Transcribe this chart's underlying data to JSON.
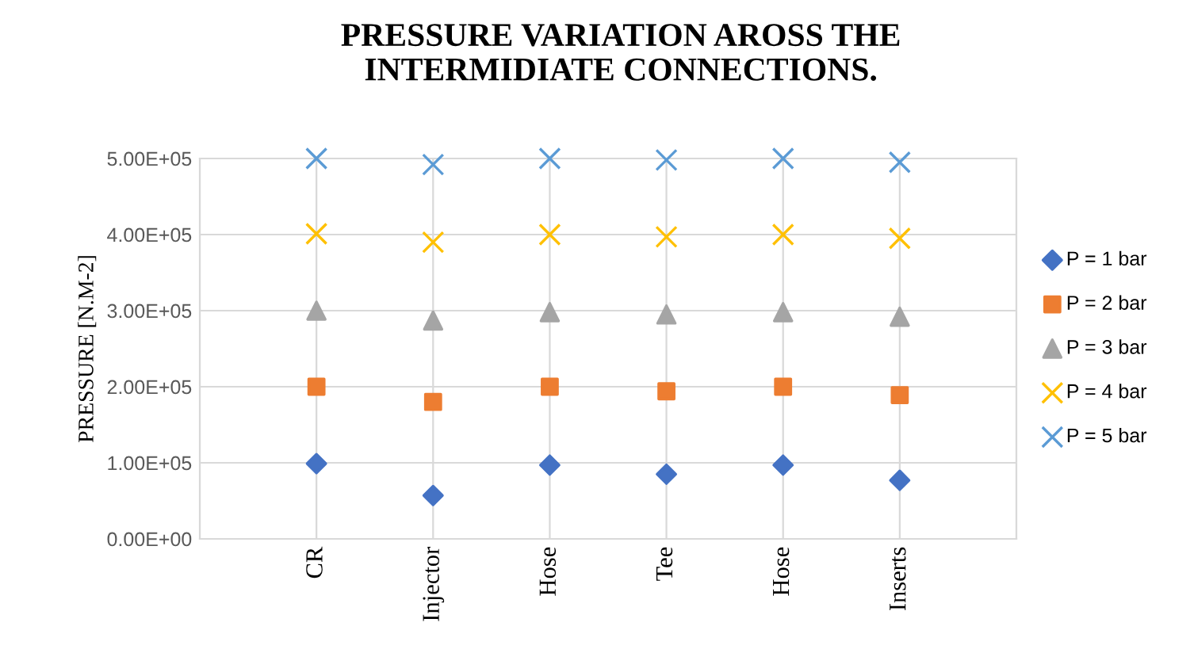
{
  "chart_data": {
    "type": "scatter",
    "title": "PRESSURE VARIATION AROSS THE\nINTERMIDIATE CONNECTIONS.",
    "ylabel": "PRESSURE [N.M-2]",
    "categories": [
      "CR",
      "Injector",
      "Hose",
      "Tee",
      "Hose",
      "Inserts"
    ],
    "series": [
      {
        "name": "P = 1 bar",
        "color": "#4472c4",
        "marker": "diamond",
        "values": [
          99000,
          57000,
          97000,
          85000,
          97000,
          77000
        ]
      },
      {
        "name": "P = 2 bar",
        "color": "#ed7d31",
        "marker": "square",
        "values": [
          200000,
          180000,
          200000,
          194000,
          200000,
          189000
        ]
      },
      {
        "name": "P = 3 bar",
        "color": "#a5a5a5",
        "marker": "triangle",
        "values": [
          300000,
          287000,
          298000,
          295000,
          298000,
          292000
        ]
      },
      {
        "name": "P = 4 bar",
        "color": "#ffc000",
        "marker": "cross",
        "values": [
          401000,
          390000,
          400000,
          397000,
          400000,
          395000
        ]
      },
      {
        "name": "P = 5 bar",
        "color": "#5b9bd5",
        "marker": "cross",
        "values": [
          500000,
          492000,
          500000,
          498000,
          500000,
          495000
        ]
      }
    ],
    "ylim": [
      0,
      500000
    ],
    "yticks": [
      {
        "value": 0,
        "label": "0.00E+00"
      },
      {
        "value": 100000,
        "label": "1.00E+05"
      },
      {
        "value": 200000,
        "label": "2.00E+05"
      },
      {
        "value": 300000,
        "label": "3.00E+05"
      },
      {
        "value": 400000,
        "label": "4.00E+05"
      },
      {
        "value": 500000,
        "label": "5.00E+05"
      }
    ],
    "grid": true,
    "legend": "right"
  }
}
